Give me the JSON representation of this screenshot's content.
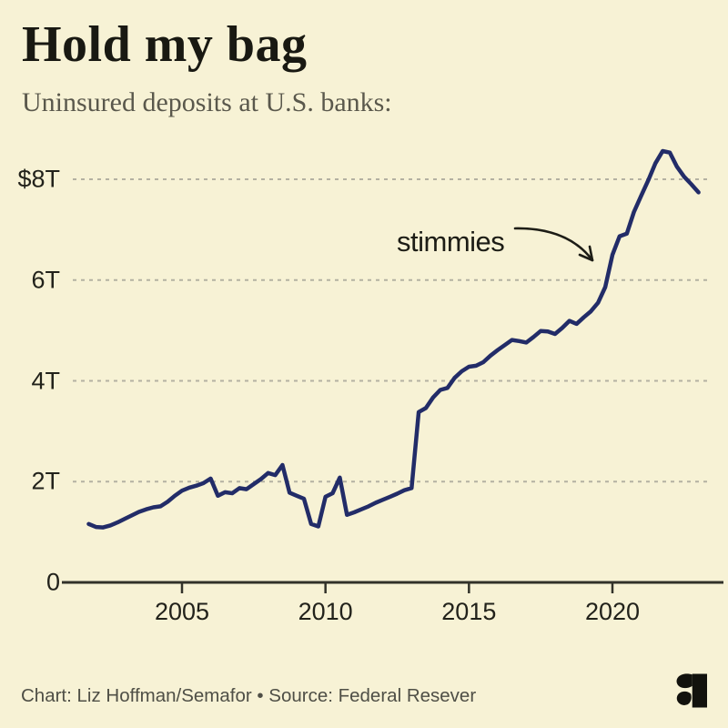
{
  "header": {
    "title": "Hold my bag",
    "subtitle": "Uninsured deposits at U.S. banks:"
  },
  "footer": {
    "credit": "Chart: Liz Hoffman/Semafor • Source: Federal Resever",
    "logo": "semafor-logo"
  },
  "colors": {
    "background": "#f7f2d5",
    "line": "#222c68",
    "gridline": "#b4b1a2",
    "axis": "#32322a",
    "annotation": "#1d1d16"
  },
  "chart_data": {
    "type": "line",
    "title": "Hold my bag",
    "subtitle": "Uninsured deposits at U.S. banks:",
    "unit": "USD trillions",
    "xlabel": "",
    "ylabel": "",
    "x_range": [
      2001.6,
      2023.4
    ],
    "y_range": [
      0,
      9
    ],
    "grid": "horizontal-dashed",
    "legend": "none",
    "x_ticks": [
      {
        "value": 2005,
        "label": "2005"
      },
      {
        "value": 2010,
        "label": "2010"
      },
      {
        "value": 2015,
        "label": "2015"
      },
      {
        "value": 2020,
        "label": "2020"
      }
    ],
    "y_ticks": [
      {
        "value": 8,
        "label": "$8T"
      },
      {
        "value": 6,
        "label": "6T"
      },
      {
        "value": 4,
        "label": "4T"
      },
      {
        "value": 2,
        "label": "2T"
      },
      {
        "value": 0,
        "label": "0"
      }
    ],
    "annotation": {
      "text": "stimmies",
      "points_at": [
        2019.9,
        6.3
      ]
    },
    "series": [
      {
        "name": "Uninsured deposits at U.S. banks ($T)",
        "color": "#222c68",
        "points": [
          [
            2001.75,
            1.16
          ],
          [
            2002.0,
            1.1
          ],
          [
            2002.25,
            1.09
          ],
          [
            2002.5,
            1.13
          ],
          [
            2002.75,
            1.19
          ],
          [
            2003.0,
            1.26
          ],
          [
            2003.25,
            1.33
          ],
          [
            2003.5,
            1.4
          ],
          [
            2003.75,
            1.45
          ],
          [
            2004.0,
            1.49
          ],
          [
            2004.25,
            1.51
          ],
          [
            2004.5,
            1.6
          ],
          [
            2004.75,
            1.72
          ],
          [
            2005.0,
            1.82
          ],
          [
            2005.25,
            1.88
          ],
          [
            2005.5,
            1.92
          ],
          [
            2005.75,
            1.97
          ],
          [
            2006.0,
            2.06
          ],
          [
            2006.25,
            1.72
          ],
          [
            2006.5,
            1.79
          ],
          [
            2006.75,
            1.77
          ],
          [
            2007.0,
            1.87
          ],
          [
            2007.25,
            1.85
          ],
          [
            2007.5,
            1.95
          ],
          [
            2007.75,
            2.05
          ],
          [
            2008.0,
            2.17
          ],
          [
            2008.25,
            2.13
          ],
          [
            2008.5,
            2.33
          ],
          [
            2008.75,
            1.78
          ],
          [
            2009.0,
            1.72
          ],
          [
            2009.25,
            1.66
          ],
          [
            2009.5,
            1.16
          ],
          [
            2009.75,
            1.11
          ],
          [
            2010.0,
            1.7
          ],
          [
            2010.25,
            1.77
          ],
          [
            2010.5,
            2.08
          ],
          [
            2010.75,
            1.34
          ],
          [
            2011.0,
            1.39
          ],
          [
            2011.25,
            1.45
          ],
          [
            2011.5,
            1.51
          ],
          [
            2011.75,
            1.58
          ],
          [
            2012.0,
            1.64
          ],
          [
            2012.25,
            1.7
          ],
          [
            2012.5,
            1.76
          ],
          [
            2012.75,
            1.83
          ],
          [
            2013.0,
            1.87
          ],
          [
            2013.25,
            3.38
          ],
          [
            2013.5,
            3.46
          ],
          [
            2013.75,
            3.67
          ],
          [
            2014.0,
            3.82
          ],
          [
            2014.25,
            3.86
          ],
          [
            2014.5,
            4.06
          ],
          [
            2014.75,
            4.19
          ],
          [
            2015.0,
            4.28
          ],
          [
            2015.25,
            4.3
          ],
          [
            2015.5,
            4.37
          ],
          [
            2015.75,
            4.5
          ],
          [
            2016.0,
            4.61
          ],
          [
            2016.25,
            4.71
          ],
          [
            2016.5,
            4.81
          ],
          [
            2016.75,
            4.79
          ],
          [
            2017.0,
            4.76
          ],
          [
            2017.25,
            4.87
          ],
          [
            2017.5,
            4.99
          ],
          [
            2017.75,
            4.98
          ],
          [
            2018.0,
            4.93
          ],
          [
            2018.25,
            5.05
          ],
          [
            2018.5,
            5.19
          ],
          [
            2018.75,
            5.13
          ],
          [
            2019.0,
            5.26
          ],
          [
            2019.25,
            5.38
          ],
          [
            2019.5,
            5.55
          ],
          [
            2019.75,
            5.86
          ],
          [
            2020.0,
            6.5
          ],
          [
            2020.25,
            6.87
          ],
          [
            2020.5,
            6.92
          ],
          [
            2020.75,
            7.35
          ],
          [
            2021.0,
            7.67
          ],
          [
            2021.25,
            7.98
          ],
          [
            2021.5,
            8.32
          ],
          [
            2021.75,
            8.56
          ],
          [
            2022.0,
            8.53
          ],
          [
            2022.25,
            8.25
          ],
          [
            2022.5,
            8.05
          ],
          [
            2022.75,
            7.9
          ],
          [
            2023.0,
            7.74
          ]
        ]
      }
    ]
  }
}
